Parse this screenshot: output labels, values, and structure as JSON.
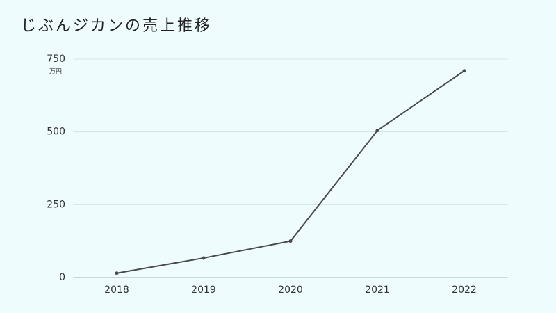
{
  "chart_data": {
    "type": "line",
    "title": "じぶんジカンの売上推移",
    "y_unit": "万円",
    "categories": [
      "2018",
      "2019",
      "2020",
      "2021",
      "2022"
    ],
    "series": [
      {
        "name": "売上",
        "color": "#4a4a4a",
        "values": [
          15,
          67,
          125,
          505,
          710
        ]
      }
    ],
    "ylim": [
      0,
      750
    ],
    "yticks": [
      0,
      250,
      500,
      750
    ],
    "grid": true
  }
}
